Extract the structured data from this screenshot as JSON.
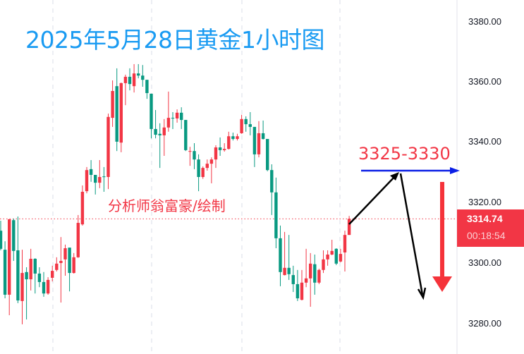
{
  "title": "2025年5月28日黄金1小时图",
  "author_note": "分析师翁富豪/绘制",
  "target_zone_label": "3325-3330",
  "price_axis": {
    "ticks": [
      "3380.00",
      "3360.00",
      "3340.00",
      "3320.00",
      "3300.00",
      "3280.00"
    ],
    "last_price": "3314.74",
    "countdown": "00:18:54"
  },
  "colors": {
    "up": "#f23645",
    "down": "#089981",
    "title": "#1a9bf2",
    "annotation": "#f23645",
    "level_arrow": "#0a1ee6",
    "path_arrows": "#000000"
  },
  "chart_data": {
    "type": "candlestick",
    "title": "2025年5月28日黄金1小时图",
    "timeframe": "1h",
    "ylim": [
      3275,
      3385
    ],
    "y_ticks": [
      3280,
      3300,
      3320,
      3340,
      3360,
      3380
    ],
    "grid": "vertical dashed",
    "last_price": 3314.74,
    "ohlc_fields": [
      "open",
      "high",
      "low",
      "close"
    ],
    "candles": [
      [
        3310.8,
        3314.1,
        3304.3,
        3304.8
      ],
      [
        3304.5,
        3307.3,
        3288.4,
        3289.6
      ],
      [
        3289.6,
        3314.6,
        3282.8,
        3314.6
      ],
      [
        3314.3,
        3314.8,
        3300.8,
        3304.1
      ],
      [
        3304.3,
        3315.5,
        3286.8,
        3287.7
      ],
      [
        3287.5,
        3304.5,
        3279.8,
        3296.8
      ],
      [
        3297.1,
        3298.7,
        3281.4,
        3294.7
      ],
      [
        3294.7,
        3304.8,
        3291.0,
        3301.5
      ],
      [
        3301.5,
        3301.7,
        3290.0,
        3296.6
      ],
      [
        3296.6,
        3298.7,
        3292.1,
        3293.8
      ],
      [
        3293.8,
        3297.1,
        3288.9,
        3290.0
      ],
      [
        3290.0,
        3295.4,
        3289.6,
        3294.5
      ],
      [
        3295.2,
        3299.2,
        3294.0,
        3297.5
      ],
      [
        3297.8,
        3302.0,
        3297.3,
        3299.9
      ],
      [
        3300.1,
        3308.7,
        3287.0,
        3300.8
      ],
      [
        3301.3,
        3306.2,
        3295.9,
        3305.0
      ],
      [
        3305.2,
        3305.2,
        3290.7,
        3296.8
      ],
      [
        3296.8,
        3303.4,
        3296.6,
        3302.0
      ],
      [
        3302.0,
        3316.0,
        3301.8,
        3313.4
      ],
      [
        3312.9,
        3325.8,
        3312.5,
        3323.7
      ],
      [
        3323.9,
        3331.9,
        3323.2,
        3330.9
      ],
      [
        3331.2,
        3334.2,
        3327.0,
        3329.3
      ],
      [
        3329.3,
        3329.3,
        3322.8,
        3326.7
      ],
      [
        3326.7,
        3334.2,
        3324.9,
        3328.6
      ],
      [
        3328.8,
        3331.9,
        3323.7,
        3328.6
      ],
      [
        3328.6,
        3349.6,
        3324.6,
        3348.5
      ],
      [
        3348.2,
        3360.6,
        3345.2,
        3357.1
      ],
      [
        3358.7,
        3364.6,
        3337.2,
        3340.3
      ],
      [
        3340.0,
        3359.9,
        3336.8,
        3359.7
      ],
      [
        3359.7,
        3362.5,
        3352.4,
        3361.8
      ],
      [
        3361.8,
        3364.6,
        3357.3,
        3359.4
      ],
      [
        3358.7,
        3366.0,
        3356.6,
        3362.9
      ],
      [
        3362.9,
        3366.0,
        3361.3,
        3362.2
      ],
      [
        3362.2,
        3365.7,
        3358.5,
        3360.8
      ],
      [
        3360.8,
        3360.8,
        3354.5,
        3356.4
      ],
      [
        3356.2,
        3356.2,
        3341.4,
        3344.5
      ],
      [
        3344.5,
        3350.8,
        3341.4,
        3342.6
      ],
      [
        3342.9,
        3346.4,
        3331.6,
        3342.4
      ],
      [
        3342.4,
        3347.8,
        3335.6,
        3345.0
      ],
      [
        3345.0,
        3356.9,
        3343.6,
        3348.2
      ],
      [
        3348.2,
        3350.1,
        3344.5,
        3348.0
      ],
      [
        3348.0,
        3351.0,
        3346.6,
        3349.9
      ],
      [
        3349.9,
        3351.7,
        3344.5,
        3347.5
      ],
      [
        3347.5,
        3347.5,
        3337.2,
        3337.5
      ],
      [
        3337.0,
        3338.6,
        3332.3,
        3337.2
      ],
      [
        3337.2,
        3339.8,
        3331.2,
        3334.4
      ],
      [
        3334.4,
        3336.1,
        3323.9,
        3328.6
      ],
      [
        3328.6,
        3332.1,
        3328.0,
        3331.6
      ],
      [
        3331.6,
        3334.4,
        3330.7,
        3333.0
      ],
      [
        3333.0,
        3335.1,
        3326.5,
        3334.4
      ],
      [
        3334.4,
        3339.1,
        3331.6,
        3338.4
      ],
      [
        3338.4,
        3341.7,
        3335.6,
        3337.5
      ],
      [
        3337.5,
        3339.8,
        3337.0,
        3337.9
      ],
      [
        3337.9,
        3343.6,
        3337.7,
        3342.1
      ],
      [
        3342.1,
        3343.3,
        3340.7,
        3341.2
      ],
      [
        3341.2,
        3342.9,
        3340.7,
        3342.1
      ],
      [
        3343.1,
        3349.2,
        3342.9,
        3347.8
      ],
      [
        3347.8,
        3348.7,
        3343.6,
        3346.1
      ],
      [
        3346.1,
        3350.1,
        3342.4,
        3345.2
      ],
      [
        3345.2,
        3345.2,
        3331.9,
        3336.1
      ],
      [
        3336.1,
        3347.1,
        3335.1,
        3343.1
      ],
      [
        3343.1,
        3347.3,
        3341.0,
        3341.2
      ],
      [
        3341.2,
        3341.2,
        3330.5,
        3330.9
      ],
      [
        3330.9,
        3332.8,
        3316.0,
        3323.5
      ],
      [
        3323.5,
        3328.4,
        3305.0,
        3308.3
      ],
      [
        3308.3,
        3312.5,
        3292.4,
        3297.1
      ],
      [
        3296.1,
        3310.4,
        3296.0,
        3298.5
      ],
      [
        3298.5,
        3309.4,
        3294.5,
        3296.4
      ],
      [
        3296.1,
        3299.2,
        3290.5,
        3293.1
      ],
      [
        3293.1,
        3297.8,
        3287.5,
        3288.4
      ],
      [
        3287.9,
        3297.8,
        3287.7,
        3293.6
      ],
      [
        3293.6,
        3304.8,
        3292.1,
        3295.0
      ],
      [
        3295.0,
        3303.4,
        3285.6,
        3299.9
      ],
      [
        3299.7,
        3302.9,
        3289.6,
        3293.6
      ],
      [
        3293.6,
        3298.2,
        3293.1,
        3297.8
      ],
      [
        3297.8,
        3304.3,
        3296.8,
        3301.3
      ],
      [
        3301.3,
        3304.3,
        3299.2,
        3302.9
      ],
      [
        3302.9,
        3307.8,
        3302.7,
        3304.1
      ],
      [
        3304.8,
        3305.0,
        3299.4,
        3299.9
      ],
      [
        3300.6,
        3304.8,
        3300.3,
        3303.1
      ],
      [
        3303.6,
        3310.8,
        3297.3,
        3309.4
      ],
      [
        3309.4,
        3315.7,
        3309.4,
        3314.74
      ]
    ],
    "annotations": {
      "resistance_zone": [
        3325,
        3330
      ],
      "resistance_line_price": 3330.5,
      "scenario": "rise to 3325-3330 then fall",
      "label": "3325-3330"
    }
  }
}
